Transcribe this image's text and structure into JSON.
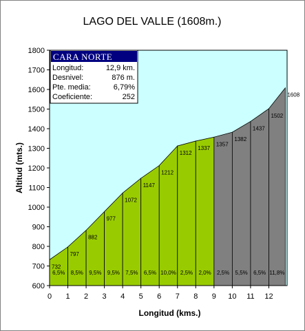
{
  "title": "LAGO DEL VALLE (1608m.)",
  "info_box": {
    "header": "CARA NORTE",
    "rows": [
      {
        "label": "Longitud:",
        "value": "12,9 km."
      },
      {
        "label": "Desnivel:",
        "value": "876 m."
      },
      {
        "label": "Pte. media:",
        "value": "6,79%"
      },
      {
        "label": "Coeficiente:",
        "value": "252"
      }
    ]
  },
  "colors": {
    "sky": "#ccffff",
    "green_section": "#99cc00",
    "gray_section": "#808080",
    "header_bg": "#000080"
  },
  "chart_data": {
    "type": "area",
    "xlabel": "Longitud (kms.)",
    "ylabel": "Altitud (mts.)",
    "xlim": [
      0,
      13
    ],
    "ylim": [
      600,
      1800
    ],
    "x_ticks": [
      0,
      1,
      2,
      3,
      4,
      5,
      6,
      7,
      8,
      9,
      10,
      11,
      12
    ],
    "y_ticks": [
      600,
      700,
      800,
      900,
      1000,
      1100,
      1200,
      1300,
      1400,
      1500,
      1600,
      1700,
      1800
    ],
    "grid": false,
    "x": [
      0,
      1,
      2,
      3,
      4,
      5,
      6,
      7,
      8,
      9,
      10,
      11,
      12,
      12.9
    ],
    "altitude": [
      732,
      797,
      882,
      977,
      1072,
      1147,
      1212,
      1312,
      1337,
      1357,
      1382,
      1437,
      1502,
      1608
    ],
    "altitude_labels": [
      "732",
      "797",
      "882",
      "977",
      "1072",
      "1147",
      "1212",
      "1312",
      "1337",
      "1357",
      "1382",
      "1437",
      "1502",
      "1608"
    ],
    "segments": [
      {
        "grade": "6,5%",
        "color": "green"
      },
      {
        "grade": "8,5%",
        "color": "green"
      },
      {
        "grade": "9,5%",
        "color": "green"
      },
      {
        "grade": "9,5%",
        "color": "green"
      },
      {
        "grade": "7,5%",
        "color": "green"
      },
      {
        "grade": "6,5%",
        "color": "green"
      },
      {
        "grade": "10,0%",
        "color": "green"
      },
      {
        "grade": "2,5%",
        "color": "green"
      },
      {
        "grade": "2,0%",
        "color": "green"
      },
      {
        "grade": "2,5%",
        "color": "gray"
      },
      {
        "grade": "5,5%",
        "color": "gray"
      },
      {
        "grade": "6,5%",
        "color": "gray"
      },
      {
        "grade": "11,8%",
        "color": "gray"
      }
    ]
  }
}
